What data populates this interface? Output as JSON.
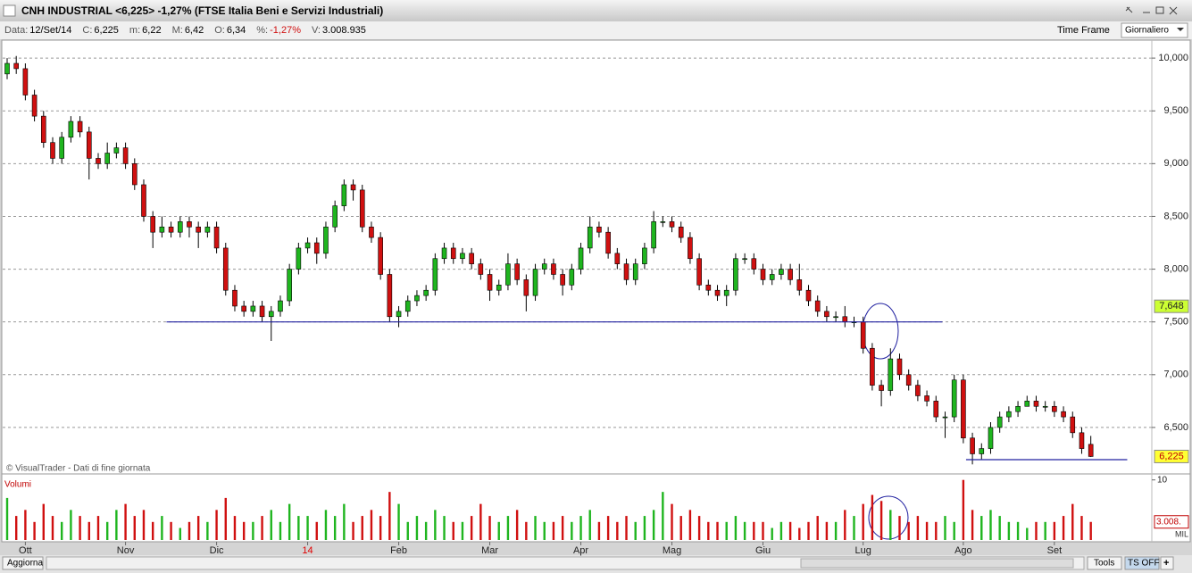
{
  "window": {
    "title": "CNH INDUSTRIAL <6,225> -1,27%  (FTSE Italia Beni e Servizi Industriali)",
    "info": [
      {
        "label": "Data:",
        "value": "12/Set/14"
      },
      {
        "label": "C:",
        "value": "6,225"
      },
      {
        "label": "m:",
        "value": "6,22"
      },
      {
        "label": "M:",
        "value": "6,42"
      },
      {
        "label": "O:",
        "value": "6,34"
      },
      {
        "label": "%:",
        "value": "-1,27%"
      },
      {
        "label": "V:",
        "value": "3.008.935"
      }
    ],
    "time_frame_label": "Time Frame",
    "time_frame": "Giornaliero",
    "buttons": {
      "refresh": "Aggiorna",
      "tools": "Tools",
      "ts": "TS OFF",
      "add": "+"
    }
  },
  "chart_data": [
    {
      "type": "candlestick",
      "credit": "© VisualTrader - Dati di fine giornata",
      "up_color": "#1fb51f",
      "down_color": "#d01010",
      "grid": true,
      "xlim": [
        -0.49,
        125.7
      ],
      "ylim": [
        6.068,
        10.17
      ],
      "xticks": [
        {
          "value": 2,
          "label": "Ott"
        },
        {
          "value": 13,
          "label": "Nov"
        },
        {
          "value": 23,
          "label": "Dic"
        },
        {
          "value": 33,
          "label": "14",
          "color": "#e00000"
        },
        {
          "value": 43,
          "label": "Feb"
        },
        {
          "value": 53,
          "label": "Mar"
        },
        {
          "value": 63,
          "label": "Apr"
        },
        {
          "value": 73,
          "label": "Mag"
        },
        {
          "value": 83,
          "label": "Giu"
        },
        {
          "value": 94,
          "label": "Lug"
        },
        {
          "value": 105,
          "label": "Ago"
        },
        {
          "value": 115,
          "label": "Set"
        }
      ],
      "yticks": [
        {
          "value": 6.5,
          "label": "6,500"
        },
        {
          "value": 7,
          "label": "7,000"
        },
        {
          "value": 7.5,
          "label": "7,500"
        },
        {
          "value": 8,
          "label": "8,000"
        },
        {
          "value": 8.5,
          "label": "8,500"
        },
        {
          "value": 9,
          "label": "9,000"
        },
        {
          "value": 9.5,
          "label": "9,500"
        },
        {
          "value": 10,
          "label": "10,000"
        }
      ],
      "price_markers": [
        {
          "value": 7.648,
          "label": "7,648",
          "color": "#ccff33"
        },
        {
          "value": 6.225,
          "label": "6,225",
          "color": "#ffff33"
        }
      ],
      "lines": [
        {
          "x": [
            17.5,
            102.7
          ],
          "y": [
            7.5,
            7.5
          ],
          "color": "#2020a0"
        },
        {
          "x": [
            105.3,
            123
          ],
          "y": [
            6.195,
            6.195
          ],
          "color": "#2020a0"
        }
      ],
      "ohlc": [
        [
          9.85,
          10.0,
          9.8,
          9.95
        ],
        [
          9.95,
          10.02,
          9.85,
          9.9
        ],
        [
          9.9,
          9.95,
          9.6,
          9.65
        ],
        [
          9.65,
          9.7,
          9.4,
          9.45
        ],
        [
          9.45,
          9.5,
          9.15,
          9.2
        ],
        [
          9.2,
          9.25,
          9.0,
          9.05
        ],
        [
          9.05,
          9.3,
          9.0,
          9.25
        ],
        [
          9.25,
          9.45,
          9.2,
          9.4
        ],
        [
          9.4,
          9.45,
          9.25,
          9.3
        ],
        [
          9.3,
          9.35,
          8.85,
          9.05
        ],
        [
          9.05,
          9.1,
          8.95,
          9.0
        ],
        [
          9.0,
          9.2,
          8.95,
          9.1
        ],
        [
          9.1,
          9.2,
          9.05,
          9.15
        ],
        [
          9.15,
          9.2,
          8.95,
          9.0
        ],
        [
          9.0,
          9.05,
          8.75,
          8.8
        ],
        [
          8.8,
          8.85,
          8.45,
          8.5
        ],
        [
          8.5,
          8.55,
          8.2,
          8.35
        ],
        [
          8.35,
          8.5,
          8.3,
          8.4
        ],
        [
          8.4,
          8.45,
          8.3,
          8.35
        ],
        [
          8.35,
          8.5,
          8.3,
          8.45
        ],
        [
          8.45,
          8.5,
          8.3,
          8.4
        ],
        [
          8.4,
          8.45,
          8.2,
          8.35
        ],
        [
          8.35,
          8.45,
          8.3,
          8.4
        ],
        [
          8.4,
          8.45,
          8.15,
          8.2
        ],
        [
          8.2,
          8.25,
          7.75,
          7.8
        ],
        [
          7.8,
          7.85,
          7.6,
          7.65
        ],
        [
          7.65,
          7.7,
          7.55,
          7.6
        ],
        [
          7.6,
          7.7,
          7.55,
          7.65
        ],
        [
          7.65,
          7.7,
          7.5,
          7.55
        ],
        [
          7.55,
          7.65,
          7.32,
          7.6
        ],
        [
          7.6,
          7.75,
          7.55,
          7.7
        ],
        [
          7.7,
          8.05,
          7.65,
          8.0
        ],
        [
          8.0,
          8.25,
          7.95,
          8.2
        ],
        [
          8.2,
          8.3,
          8.15,
          8.25
        ],
        [
          8.25,
          8.3,
          8.05,
          8.15
        ],
        [
          8.15,
          8.45,
          8.1,
          8.4
        ],
        [
          8.4,
          8.65,
          8.35,
          8.6
        ],
        [
          8.6,
          8.85,
          8.55,
          8.8
        ],
        [
          8.8,
          8.85,
          8.65,
          8.75
        ],
        [
          8.75,
          8.8,
          8.35,
          8.4
        ],
        [
          8.4,
          8.45,
          8.25,
          8.3
        ],
        [
          8.3,
          8.35,
          7.9,
          7.95
        ],
        [
          7.95,
          8.0,
          7.5,
          7.55
        ],
        [
          7.55,
          7.65,
          7.45,
          7.6
        ],
        [
          7.6,
          7.75,
          7.55,
          7.7
        ],
        [
          7.7,
          7.8,
          7.65,
          7.75
        ],
        [
          7.75,
          7.85,
          7.7,
          7.8
        ],
        [
          7.8,
          8.15,
          7.75,
          8.1
        ],
        [
          8.1,
          8.25,
          8.05,
          8.2
        ],
        [
          8.2,
          8.25,
          8.05,
          8.1
        ],
        [
          8.1,
          8.2,
          8.05,
          8.15
        ],
        [
          8.15,
          8.2,
          8.0,
          8.05
        ],
        [
          8.05,
          8.1,
          7.9,
          7.95
        ],
        [
          7.95,
          8.0,
          7.7,
          7.8
        ],
        [
          7.8,
          7.9,
          7.75,
          7.85
        ],
        [
          7.85,
          8.15,
          7.8,
          8.05
        ],
        [
          8.05,
          8.1,
          7.85,
          7.9
        ],
        [
          7.9,
          7.95,
          7.6,
          7.75
        ],
        [
          7.75,
          8.05,
          7.7,
          8.0
        ],
        [
          8.0,
          8.1,
          7.95,
          8.05
        ],
        [
          8.05,
          8.1,
          7.9,
          7.95
        ],
        [
          7.95,
          8.0,
          7.75,
          7.85
        ],
        [
          7.85,
          8.05,
          7.8,
          8.0
        ],
        [
          8.0,
          8.25,
          7.95,
          8.2
        ],
        [
          8.2,
          8.5,
          8.15,
          8.4
        ],
        [
          8.4,
          8.45,
          8.3,
          8.35
        ],
        [
          8.35,
          8.4,
          8.1,
          8.15
        ],
        [
          8.15,
          8.2,
          8.0,
          8.05
        ],
        [
          8.05,
          8.1,
          7.85,
          7.9
        ],
        [
          7.9,
          8.1,
          7.85,
          8.05
        ],
        [
          8.05,
          8.25,
          8.0,
          8.2
        ],
        [
          8.2,
          8.55,
          8.15,
          8.45
        ],
        [
          8.45,
          8.5,
          8.4,
          8.45
        ],
        [
          8.45,
          8.5,
          8.35,
          8.4
        ],
        [
          8.4,
          8.45,
          8.25,
          8.3
        ],
        [
          8.3,
          8.35,
          8.05,
          8.1
        ],
        [
          8.1,
          8.15,
          7.8,
          7.85
        ],
        [
          7.85,
          7.9,
          7.75,
          7.8
        ],
        [
          7.8,
          7.85,
          7.7,
          7.75
        ],
        [
          7.75,
          7.85,
          7.65,
          7.8
        ],
        [
          7.8,
          8.15,
          7.75,
          8.1
        ],
        [
          8.1,
          8.15,
          8.05,
          8.1
        ],
        [
          8.1,
          8.15,
          7.95,
          8.0
        ],
        [
          8.0,
          8.05,
          7.85,
          7.9
        ],
        [
          7.9,
          8.0,
          7.85,
          7.95
        ],
        [
          7.95,
          8.05,
          7.9,
          8.0
        ],
        [
          8.0,
          8.05,
          7.85,
          7.9
        ],
        [
          7.9,
          8.05,
          7.75,
          7.8
        ],
        [
          7.8,
          7.85,
          7.65,
          7.7
        ],
        [
          7.7,
          7.75,
          7.55,
          7.6
        ],
        [
          7.6,
          7.65,
          7.5,
          7.55
        ],
        [
          7.55,
          7.6,
          7.5,
          7.55
        ],
        [
          7.55,
          7.65,
          7.45,
          7.5
        ],
        [
          7.5,
          7.55,
          7.45,
          7.5
        ],
        [
          7.5,
          7.55,
          7.2,
          7.25
        ],
        [
          7.25,
          7.3,
          6.85,
          6.9
        ],
        [
          6.9,
          6.95,
          6.7,
          6.85
        ],
        [
          6.85,
          7.25,
          6.8,
          7.15
        ],
        [
          7.15,
          7.2,
          6.95,
          7.0
        ],
        [
          7.0,
          7.05,
          6.85,
          6.9
        ],
        [
          6.9,
          6.95,
          6.75,
          6.8
        ],
        [
          6.8,
          6.85,
          6.7,
          6.75
        ],
        [
          6.75,
          6.8,
          6.55,
          6.6
        ],
        [
          6.6,
          6.65,
          6.4,
          6.6
        ],
        [
          6.6,
          7.0,
          6.55,
          6.95
        ],
        [
          6.95,
          7.0,
          6.35,
          6.4
        ],
        [
          6.4,
          6.45,
          6.15,
          6.25
        ],
        [
          6.25,
          6.35,
          6.2,
          6.3
        ],
        [
          6.3,
          6.55,
          6.25,
          6.5
        ],
        [
          6.5,
          6.65,
          6.45,
          6.6
        ],
        [
          6.6,
          6.7,
          6.55,
          6.65
        ],
        [
          6.65,
          6.75,
          6.6,
          6.7
        ],
        [
          6.7,
          6.8,
          6.7,
          6.75
        ],
        [
          6.75,
          6.8,
          6.65,
          6.7
        ],
        [
          6.7,
          6.75,
          6.65,
          6.7
        ],
        [
          6.7,
          6.75,
          6.6,
          6.65
        ],
        [
          6.65,
          6.7,
          6.55,
          6.6
        ],
        [
          6.6,
          6.65,
          6.4,
          6.45
        ],
        [
          6.45,
          6.5,
          6.25,
          6.3
        ],
        [
          6.34,
          6.42,
          6.22,
          6.225
        ]
      ]
    },
    {
      "type": "volume",
      "title": "Volumi",
      "unit": "MIL",
      "ylim": [
        0,
        10.7
      ],
      "yticks": [
        10
      ],
      "marker": {
        "value": 3.008935,
        "label": "3.008."
      },
      "values": [
        7,
        4,
        5,
        3,
        6,
        4,
        3,
        5,
        4,
        3,
        4,
        3,
        5,
        6,
        4,
        5,
        3,
        4,
        3,
        2,
        3,
        4,
        3,
        5,
        7,
        4,
        3,
        3,
        4,
        5,
        3,
        6,
        4,
        4,
        3,
        5,
        4,
        6,
        3,
        4,
        5,
        4,
        8,
        6,
        3,
        4,
        3,
        5,
        4,
        3,
        3,
        4,
        6,
        4,
        3,
        4,
        5,
        3,
        4,
        3,
        3,
        4,
        3,
        4,
        5,
        3,
        4,
        3,
        4,
        3,
        4,
        5,
        8,
        6,
        4,
        5,
        4,
        3,
        3,
        3,
        4,
        3,
        3,
        3,
        2,
        3,
        3,
        2,
        3,
        4,
        3,
        3,
        5,
        4,
        6,
        7.5,
        6.5,
        5,
        4,
        3,
        4,
        3,
        3,
        4,
        3,
        10,
        5,
        4,
        5,
        4,
        3,
        3,
        2,
        3,
        3,
        3,
        4,
        6,
        4,
        3.008935
      ]
    }
  ]
}
